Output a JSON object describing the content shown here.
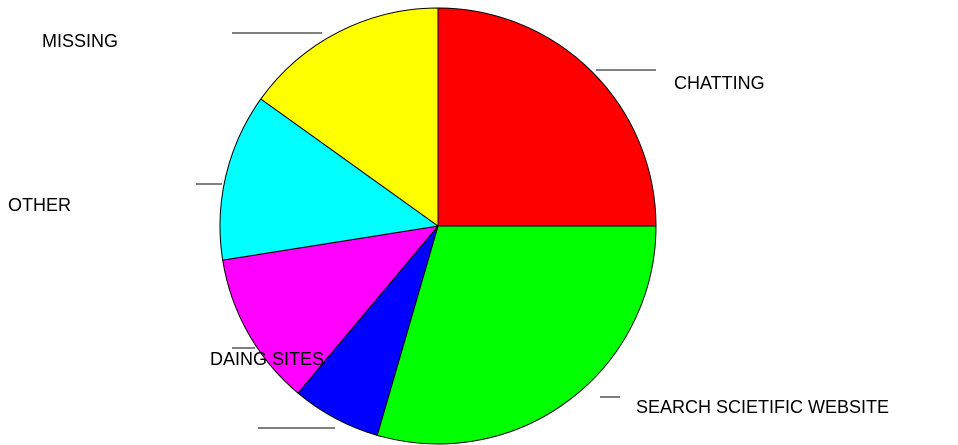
{
  "chart_data": {
    "type": "pie",
    "start_angle_deg": 0,
    "direction": "clockwise",
    "slices": [
      {
        "label": "CHATTING",
        "value": 25.0,
        "color": "#ff0000"
      },
      {
        "label": "SEARCH SCIETIFIC WEBSITE",
        "value": 29.5,
        "color": "#00ff00"
      },
      {
        "label": "",
        "value": 6.6,
        "color": "#0000ff"
      },
      {
        "label": "DAING SITES",
        "value": 11.4,
        "color": "#ff00ff"
      },
      {
        "label": "OTHER",
        "value": 12.4,
        "color": "#00ffff"
      },
      {
        "label": "MISSING",
        "value": 15.1,
        "color": "#ffff00"
      }
    ]
  }
}
